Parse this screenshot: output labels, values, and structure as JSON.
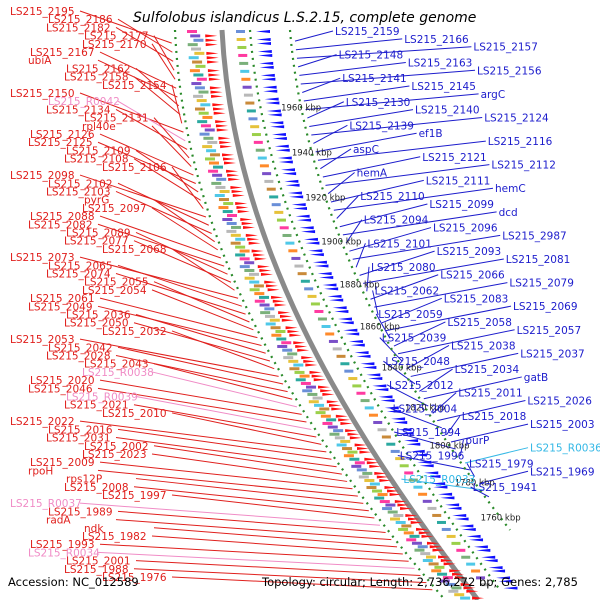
{
  "title": "Sulfolobus islandicus L.S.2.15, complete genome",
  "footer": {
    "accession": "Accession: NC_012589",
    "topology": "Topology: circular; Length: 2,736,272 bp; Genes: 2,785"
  },
  "colors": {
    "left_label": "#e0201d",
    "left_label_rna": "#f08cc6",
    "right_label": "#1c1ccc",
    "right_label_rna": "#34b8e6",
    "backbone": "#8a8a8a",
    "ring_dots": "#2a8a2a",
    "forward_arrow": "#ff1010",
    "reverse_arrow": "#1010ff"
  },
  "kbp_ticks": [
    "1960 kbp",
    "1940 kbp",
    "1920 kbp",
    "1900 kbp",
    "1880 kbp",
    "1860 kbp",
    "1840 kbp",
    "1820 kbp",
    "1800 kbp",
    "1780 kbp",
    "1760 kbp"
  ],
  "left_labels": [
    {
      "text": "LS215_2195",
      "rna": false
    },
    {
      "text": "LS215_2186",
      "rna": false
    },
    {
      "text": "LS215_2182",
      "rna": false
    },
    {
      "text": "LS215_2177",
      "rna": false
    },
    {
      "text": "LS215_2170",
      "rna": false
    },
    {
      "text": "LS215_2167",
      "rna": false
    },
    {
      "text": "ubiA",
      "rna": false
    },
    {
      "text": "LS215_2162",
      "rna": false
    },
    {
      "text": "LS215_2158",
      "rna": false
    },
    {
      "text": "LS215_2154",
      "rna": false
    },
    {
      "text": "LS215_2150",
      "rna": false
    },
    {
      "text": "LS215_R0042",
      "rna": true
    },
    {
      "text": "LS215_2134",
      "rna": false
    },
    {
      "text": "LS215_2131",
      "rna": false
    },
    {
      "text": "rpl40e",
      "rna": false
    },
    {
      "text": "LS215_2126",
      "rna": false
    },
    {
      "text": "LS215_2125",
      "rna": false
    },
    {
      "text": "LS215_2109",
      "rna": false
    },
    {
      "text": "LS215_2108",
      "rna": false
    },
    {
      "text": "LS215_2106",
      "rna": false
    },
    {
      "text": "LS215_2098",
      "rna": false
    },
    {
      "text": "LS215_2102",
      "rna": false
    },
    {
      "text": "LS215_2103",
      "rna": false
    },
    {
      "text": "pyrG",
      "rna": false
    },
    {
      "text": "LS215_2097",
      "rna": false
    },
    {
      "text": "LS215_2088",
      "rna": false
    },
    {
      "text": "LS215_2082",
      "rna": false
    },
    {
      "text": "LS215_2089",
      "rna": false
    },
    {
      "text": "LS215_2077",
      "rna": false
    },
    {
      "text": "LS215_2068",
      "rna": false
    },
    {
      "text": "LS215_2073",
      "rna": false
    },
    {
      "text": "LS215_2065",
      "rna": false
    },
    {
      "text": "LS215_2074",
      "rna": false
    },
    {
      "text": "LS215_2055",
      "rna": false
    },
    {
      "text": "LS215_2054",
      "rna": false
    },
    {
      "text": "LS215_2061",
      "rna": false
    },
    {
      "text": "LS215_2049",
      "rna": false
    },
    {
      "text": "LS215_2036",
      "rna": false
    },
    {
      "text": "LS215_2050",
      "rna": false
    },
    {
      "text": "LS215_2032",
      "rna": false
    },
    {
      "text": "LS215_2053",
      "rna": false
    },
    {
      "text": "LS215_2042",
      "rna": false
    },
    {
      "text": "LS215_2028",
      "rna": false
    },
    {
      "text": "LS215_2043",
      "rna": false
    },
    {
      "text": "LS215_R0038",
      "rna": true
    },
    {
      "text": "LS215_2020",
      "rna": false
    },
    {
      "text": "LS215_2046",
      "rna": false
    },
    {
      "text": "LS215_R0039",
      "rna": true
    },
    {
      "text": "LS215_2021",
      "rna": false
    },
    {
      "text": "LS215_2010",
      "rna": false
    },
    {
      "text": "LS215_2022",
      "rna": false
    },
    {
      "text": "LS215_2016",
      "rna": false
    },
    {
      "text": "LS215_2031",
      "rna": false
    },
    {
      "text": "LS215_2002",
      "rna": false
    },
    {
      "text": "LS215_2023",
      "rna": false
    },
    {
      "text": "LS215_2009",
      "rna": false
    },
    {
      "text": "rpoH",
      "rna": false
    },
    {
      "text": "rps12P",
      "rna": false
    },
    {
      "text": "LS215_2008",
      "rna": false
    },
    {
      "text": "LS215_1997",
      "rna": false
    },
    {
      "text": "LS215_R0037",
      "rna": true
    },
    {
      "text": "LS215_1989",
      "rna": false
    },
    {
      "text": "radA",
      "rna": false
    },
    {
      "text": "ndk",
      "rna": false
    },
    {
      "text": "LS215_1982",
      "rna": false
    },
    {
      "text": "LS215_1993",
      "rna": false
    },
    {
      "text": "LS215_R0034",
      "rna": true
    },
    {
      "text": "LS215_2001",
      "rna": false
    },
    {
      "text": "LS215_1988",
      "rna": false
    },
    {
      "text": "LS215_1976",
      "rna": false
    }
  ],
  "right_labels": [
    {
      "text": "LS215_2159",
      "rna": false
    },
    {
      "text": "LS215_2166",
      "rna": false
    },
    {
      "text": "LS215_2157",
      "rna": false
    },
    {
      "text": "LS215_2148",
      "rna": false
    },
    {
      "text": "LS215_2163",
      "rna": false
    },
    {
      "text": "LS215_2156",
      "rna": false
    },
    {
      "text": "LS215_2141",
      "rna": false
    },
    {
      "text": "LS215_2145",
      "rna": false
    },
    {
      "text": "argC",
      "rna": false
    },
    {
      "text": "LS215_2130",
      "rna": false
    },
    {
      "text": "LS215_2140",
      "rna": false
    },
    {
      "text": "LS215_2124",
      "rna": false
    },
    {
      "text": "LS215_2139",
      "rna": false
    },
    {
      "text": "ef1B",
      "rna": false
    },
    {
      "text": "LS215_2116",
      "rna": false
    },
    {
      "text": "aspC",
      "rna": false
    },
    {
      "text": "LS215_2121",
      "rna": false
    },
    {
      "text": "LS215_2112",
      "rna": false
    },
    {
      "text": "hemA",
      "rna": false
    },
    {
      "text": "LS215_2111",
      "rna": false
    },
    {
      "text": "hemC",
      "rna": false
    },
    {
      "text": "LS215_2110",
      "rna": false
    },
    {
      "text": "LS215_2099",
      "rna": false
    },
    {
      "text": "dcd",
      "rna": false
    },
    {
      "text": "LS215_2094",
      "rna": false
    },
    {
      "text": "LS215_2096",
      "rna": false
    },
    {
      "text": "LS215_2987",
      "rna": false
    },
    {
      "text": "LS215_2101",
      "rna": false
    },
    {
      "text": "LS215_2093",
      "rna": false
    },
    {
      "text": "LS215_2081",
      "rna": false
    },
    {
      "text": "LS215_2080",
      "rna": false
    },
    {
      "text": "LS215_2066",
      "rna": false
    },
    {
      "text": "LS215_2079",
      "rna": false
    },
    {
      "text": "LS215_2062",
      "rna": false
    },
    {
      "text": "LS215_2083",
      "rna": false
    },
    {
      "text": "LS215_2069",
      "rna": false
    },
    {
      "text": "LS215_2059",
      "rna": false
    },
    {
      "text": "LS215_2058",
      "rna": false
    },
    {
      "text": "LS215_2057",
      "rna": false
    },
    {
      "text": "LS215_2039",
      "rna": false
    },
    {
      "text": "LS215_2038",
      "rna": false
    },
    {
      "text": "LS215_2037",
      "rna": false
    },
    {
      "text": "LS215_2048",
      "rna": false
    },
    {
      "text": "LS215_2034",
      "rna": false
    },
    {
      "text": "gatB",
      "rna": false
    },
    {
      "text": "LS215_2012",
      "rna": false
    },
    {
      "text": "LS215_2011",
      "rna": false
    },
    {
      "text": "LS215_2026",
      "rna": false
    },
    {
      "text": "LS215_2004",
      "rna": false
    },
    {
      "text": "LS215_2018",
      "rna": false
    },
    {
      "text": "LS215_2003",
      "rna": false
    },
    {
      "text": "LS215_1994",
      "rna": false
    },
    {
      "text": "purP",
      "rna": false
    },
    {
      "text": "LS215_R0036",
      "rna": true
    },
    {
      "text": "LS215_1996",
      "rna": false
    },
    {
      "text": "LS215_1979",
      "rna": false
    },
    {
      "text": "LS215_1969",
      "rna": false
    },
    {
      "text": "LS215_R0033",
      "rna": true
    },
    {
      "text": "LS215_1941",
      "rna": false
    }
  ]
}
